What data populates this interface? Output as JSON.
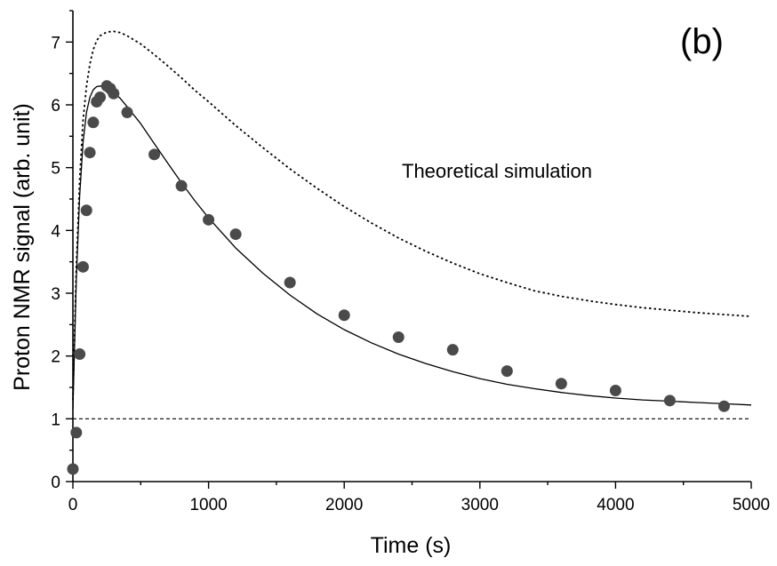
{
  "chart_data": {
    "type": "scatter",
    "title": "",
    "panel_label": "(b)",
    "xlabel": "Time (s)",
    "ylabel": "Proton NMR signal (arb. unit)",
    "xlim": [
      0,
      5000
    ],
    "ylim": [
      0,
      7.5
    ],
    "x_ticks": [
      0,
      1000,
      2000,
      3000,
      4000,
      5000
    ],
    "y_ticks": [
      0,
      1,
      2,
      3,
      4,
      5,
      6,
      7
    ],
    "annotation": "Theoretical simulation",
    "grid": false,
    "colors": {
      "points": "#4a4a4a",
      "lines": "#000000"
    },
    "series": [
      {
        "kind": "points",
        "x": [
          0,
          25,
          50,
          75,
          100,
          125,
          150,
          175,
          200,
          250,
          275,
          300,
          400,
          600,
          800,
          1000,
          1200,
          1600,
          2000,
          2400,
          2800,
          3200,
          3600,
          4000,
          4400,
          4800
        ],
        "y": [
          0.2,
          0.78,
          2.03,
          3.42,
          4.32,
          5.24,
          5.72,
          6.05,
          6.12,
          6.3,
          6.26,
          6.18,
          5.88,
          5.21,
          4.71,
          4.17,
          3.94,
          3.17,
          2.65,
          2.3,
          2.1,
          1.76,
          1.56,
          1.45,
          1.29,
          1.2
        ]
      },
      {
        "kind": "fit",
        "style": "solid",
        "x": [
          0,
          25,
          50,
          75,
          100,
          125,
          150,
          175,
          200,
          225,
          250,
          275,
          300,
          350,
          400,
          500,
          600,
          700,
          800,
          900,
          1000,
          1200,
          1400,
          1600,
          1800,
          2000,
          2200,
          2400,
          2600,
          2800,
          3000,
          3200,
          3400,
          3600,
          3800,
          4000,
          4200,
          4400,
          4600,
          4800,
          5000
        ],
        "y": [
          1.15,
          3.2,
          4.55,
          5.4,
          5.88,
          6.12,
          6.24,
          6.29,
          6.3,
          6.29,
          6.27,
          6.24,
          6.2,
          6.1,
          5.97,
          5.7,
          5.38,
          5.07,
          4.76,
          4.47,
          4.2,
          3.72,
          3.32,
          2.97,
          2.67,
          2.42,
          2.21,
          2.03,
          1.88,
          1.75,
          1.64,
          1.55,
          1.48,
          1.42,
          1.37,
          1.33,
          1.3,
          1.28,
          1.26,
          1.24,
          1.22
        ]
      },
      {
        "kind": "simulation",
        "style": "dotted",
        "x": [
          0,
          25,
          50,
          75,
          100,
          125,
          150,
          175,
          200,
          250,
          300,
          350,
          400,
          500,
          600,
          700,
          800,
          900,
          1000,
          1200,
          1400,
          1600,
          1800,
          2000,
          2200,
          2400,
          2600,
          2800,
          3000,
          3200,
          3400,
          3600,
          3800,
          4000,
          4200,
          4400,
          4600,
          4800,
          5000
        ],
        "y": [
          1.3,
          3.4,
          4.8,
          5.75,
          6.3,
          6.65,
          6.88,
          7.02,
          7.1,
          7.16,
          7.17,
          7.15,
          7.1,
          6.97,
          6.8,
          6.62,
          6.43,
          6.23,
          6.05,
          5.67,
          5.32,
          4.98,
          4.67,
          4.38,
          4.12,
          3.88,
          3.67,
          3.48,
          3.31,
          3.17,
          3.04,
          2.95,
          2.88,
          2.82,
          2.77,
          2.73,
          2.69,
          2.66,
          2.63
        ]
      },
      {
        "kind": "reference",
        "style": "dashed",
        "x": [
          0,
          5000
        ],
        "y": [
          1,
          1
        ]
      }
    ]
  }
}
